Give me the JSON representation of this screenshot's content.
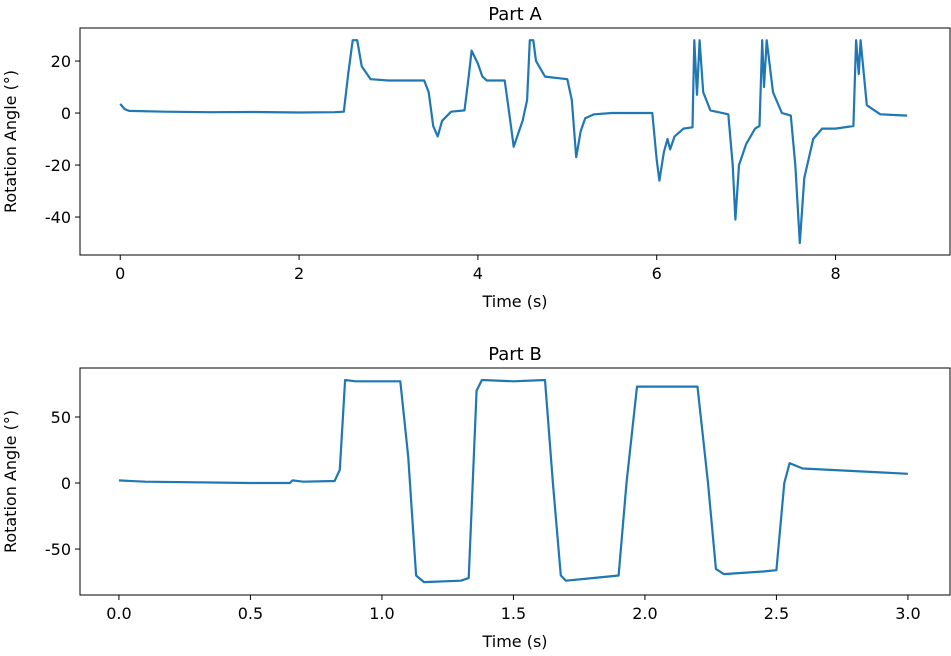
{
  "chart_data": [
    {
      "type": "line",
      "title": "Part A",
      "x_label": "Time (s)",
      "y_label": "Rotation Angle (°)",
      "xlim": [
        -0.45,
        9.28
      ],
      "ylim": [
        -54.6,
        32.7
      ],
      "xticks": [
        0,
        2,
        4,
        6,
        8
      ],
      "yticks": [
        -40,
        -20,
        0,
        20
      ],
      "grid": false,
      "series": [
        {
          "color": "#1f77b4",
          "x": [
            0.0,
            0.05,
            0.1,
            0.5,
            1,
            1.5,
            2,
            2.4,
            2.5,
            2.55,
            2.6,
            2.65,
            2.7,
            2.8,
            3.0,
            3.4,
            3.45,
            3.5,
            3.55,
            3.6,
            3.7,
            3.85,
            3.9,
            3.93,
            4.0,
            4.05,
            4.1,
            4.3,
            4.35,
            4.4,
            4.45,
            4.5,
            4.55,
            4.58,
            4.62,
            4.65,
            4.75,
            5.0,
            5.05,
            5.1,
            5.15,
            5.2,
            5.3,
            5.5,
            5.95,
            6.0,
            6.03,
            6.08,
            6.12,
            6.15,
            6.2,
            6.3,
            6.4,
            6.42,
            6.45,
            6.48,
            6.52,
            6.6,
            6.8,
            6.85,
            6.88,
            6.92,
            7.0,
            7.1,
            7.15,
            7.18,
            7.2,
            7.23,
            7.3,
            7.4,
            7.5,
            7.55,
            7.6,
            7.65,
            7.75,
            7.85,
            8.0,
            8.2,
            8.23,
            8.26,
            8.28,
            8.35,
            8.5,
            8.8
          ],
          "values": [
            3.5,
            1.5,
            0.8,
            0.5,
            0.3,
            0.4,
            0.2,
            0.3,
            0.5,
            15,
            28,
            28,
            18,
            13,
            12.5,
            12.5,
            8,
            -5,
            -9,
            -3,
            0.5,
            1,
            15,
            24,
            19,
            14,
            12.5,
            12.5,
            0,
            -13,
            -8,
            -3,
            5,
            28,
            28,
            20,
            14,
            13,
            5,
            -17,
            -7,
            -2,
            -0.5,
            0,
            0,
            -18,
            -26,
            -15,
            -10,
            -14,
            -9,
            -6,
            -5.5,
            28,
            7,
            28,
            8,
            1,
            -0.5,
            -20,
            -41,
            -20,
            -12,
            -6,
            -5,
            28,
            10,
            28,
            8,
            0,
            -1,
            -20,
            -50,
            -25,
            -10,
            -6,
            -6,
            -5,
            28,
            15,
            28,
            3,
            -0.5,
            -1
          ]
        }
      ]
    },
    {
      "type": "line",
      "title": "Part B",
      "x_label": "Time (s)",
      "y_label": "Rotation Angle (°)",
      "xlim": [
        -0.148,
        3.16
      ],
      "ylim": [
        -84.8,
        87.1
      ],
      "xticks": [
        {
          "value": 0,
          "label": "0.0"
        },
        0.5,
        {
          "value": 1,
          "label": "1.0"
        },
        1.5,
        {
          "value": 2,
          "label": "2.0"
        },
        2.5,
        {
          "value": 3,
          "label": "3.0"
        }
      ],
      "yticks": [
        -50,
        0,
        50
      ],
      "grid": false,
      "series": [
        {
          "color": "#1f77b4",
          "x": [
            0,
            0.1,
            0.5,
            0.65,
            0.66,
            0.7,
            0.82,
            0.84,
            0.86,
            0.9,
            1.07,
            1.1,
            1.13,
            1.16,
            1.3,
            1.33,
            1.36,
            1.38,
            1.5,
            1.62,
            1.65,
            1.68,
            1.7,
            1.8,
            1.9,
            1.93,
            1.97,
            2.1,
            2.2,
            2.24,
            2.27,
            2.3,
            2.45,
            2.5,
            2.53,
            2.55,
            2.6,
            2.8,
            3.0
          ],
          "values": [
            2,
            1,
            0,
            0,
            2,
            1,
            1.5,
            10,
            78,
            77,
            77,
            20,
            -70,
            -75,
            -74,
            -72,
            70,
            78,
            77,
            78,
            0,
            -70,
            -74,
            -72,
            -70,
            0,
            73,
            73,
            73,
            0,
            -65,
            -69,
            -67,
            -66,
            0,
            15,
            11,
            9,
            7
          ]
        }
      ]
    }
  ]
}
